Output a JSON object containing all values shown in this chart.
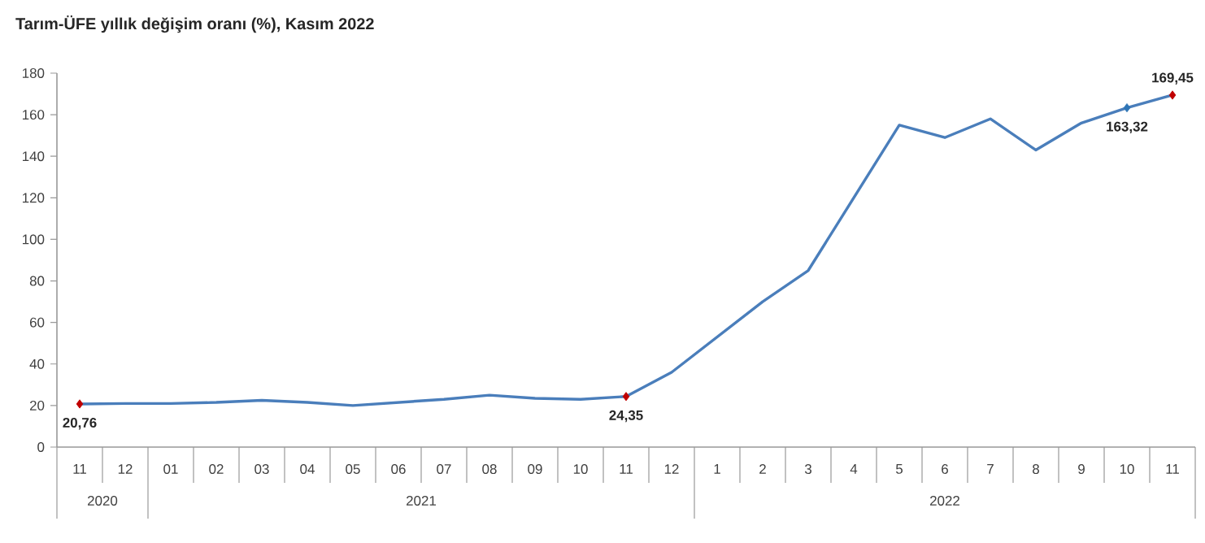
{
  "chart_data": {
    "type": "line",
    "title": "Tarım-ÜFE yıllık değişim oranı (%), Kasım 2022",
    "categories": [
      "11",
      "12",
      "01",
      "02",
      "03",
      "04",
      "05",
      "06",
      "07",
      "08",
      "09",
      "10",
      "11",
      "12",
      "1",
      "2",
      "3",
      "4",
      "5",
      "6",
      "7",
      "8",
      "9",
      "10",
      "11"
    ],
    "series": [
      {
        "color": "#4a7ebb",
        "values": [
          20.76,
          21,
          21,
          21.5,
          22.5,
          21.5,
          20,
          21.5,
          23,
          25,
          23.5,
          23,
          24.35,
          36,
          53,
          70,
          85,
          120,
          155,
          149,
          158,
          143,
          156,
          163.32,
          169.45
        ],
        "value_labels": [
          "20,76",
          null,
          null,
          null,
          null,
          null,
          null,
          null,
          null,
          null,
          null,
          null,
          "24,35",
          null,
          null,
          null,
          null,
          null,
          null,
          null,
          null,
          null,
          null,
          "163,32",
          "169,45"
        ],
        "colors": [
          "#c00000",
          null,
          null,
          null,
          null,
          null,
          null,
          null,
          null,
          null,
          null,
          null,
          "#c00000",
          null,
          null,
          null,
          null,
          null,
          null,
          null,
          null,
          null,
          null,
          "#2e75b6",
          "#c00000"
        ]
      }
    ],
    "ylim": [
      0,
      180
    ],
    "yticks": [
      0,
      20,
      40,
      60,
      80,
      100,
      120,
      140,
      160,
      180
    ],
    "grid": false,
    "annotations": [
      "2020",
      "2021",
      "2022"
    ]
  }
}
